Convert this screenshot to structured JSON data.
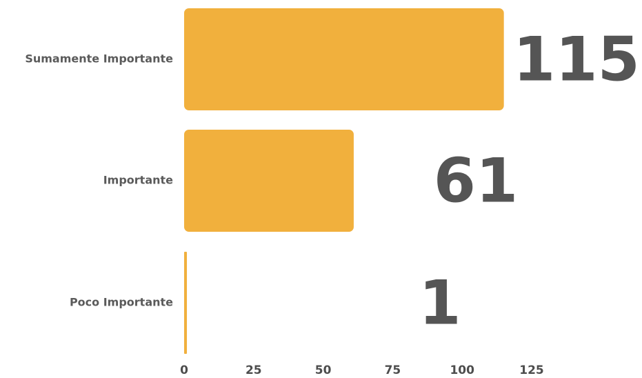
{
  "chart_data": {
    "type": "bar",
    "orientation": "horizontal",
    "categories": [
      "Sumamente Importante",
      "Importante",
      "Poco Importante"
    ],
    "values": [
      115,
      61,
      1
    ],
    "data_labels": [
      "115",
      "61",
      "1"
    ],
    "xlim": [
      0,
      125
    ],
    "xticks": [
      "0",
      "25",
      "50",
      "75",
      "100",
      "125"
    ],
    "title": "",
    "xlabel": "",
    "ylabel": "",
    "grid": false,
    "legend": "none",
    "bar_color": "#f1b03d",
    "label_color": "#555555"
  }
}
